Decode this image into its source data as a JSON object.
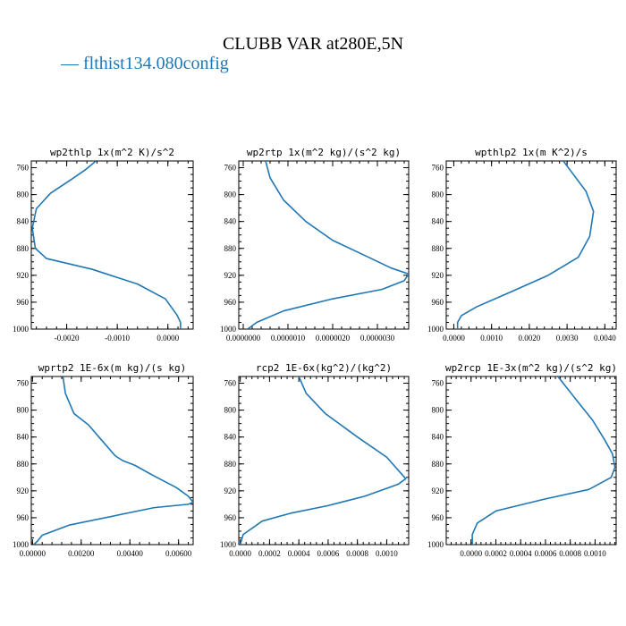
{
  "title": "CLUBB VAR at280E,5N",
  "legend": {
    "label": "— flthist134.080config",
    "color": "#1f77b4"
  },
  "chart_data": [
    {
      "type": "line",
      "title": "wp2thlp  1x(m^2 K)/s^2",
      "ylim": [
        1000,
        750
      ],
      "y_ticks": [
        760,
        800,
        840,
        880,
        920,
        960,
        1000
      ],
      "xlim": [
        -0.0027,
        0.0005
      ],
      "x_ticks": [
        -0.002,
        -0.001,
        0.0
      ],
      "x_tick_labels": [
        "-0.0020",
        "-0.0010",
        "0.0000"
      ],
      "series": [
        {
          "x": [
            -0.00142,
            -0.00163,
            -0.0019,
            -0.00232,
            -0.0026,
            -0.00268,
            -0.00262,
            -0.0024,
            -0.0015,
            -0.0006,
            -5e-05,
            0.00018,
            0.00025,
            0.00025
          ],
          "y": [
            750,
            763,
            777,
            798,
            821,
            850,
            880,
            895,
            911,
            933,
            955,
            979,
            990,
            1000
          ]
        }
      ]
    },
    {
      "type": "line",
      "title": "wp2rtp  1x(m^2 kg)/(s^2 kg)",
      "ylim": [
        1000,
        750
      ],
      "y_ticks": [
        760,
        800,
        840,
        880,
        920,
        960,
        1000
      ],
      "xlim": [
        -1e-07,
        3.7e-06
      ],
      "x_ticks": [
        0.0,
        1e-06,
        2e-06,
        3e-06
      ],
      "x_tick_labels": [
        "0.0000000",
        "0.0000010",
        "0.0000020",
        "0.0000030"
      ],
      "series": [
        {
          "x": [
            5e-07,
            6e-07,
            9e-07,
            1.4e-06,
            2e-06,
            2.8e-06,
            3.3e-06,
            3.7e-06,
            3.6e-06,
            3.1e-06,
            2e-06,
            9e-07,
            3e-07,
            1e-07
          ],
          "y": [
            750,
            775,
            808,
            840,
            868,
            893,
            909,
            918,
            928,
            941,
            955,
            973,
            990,
            1000
          ]
        }
      ]
    },
    {
      "type": "line",
      "title": "wpthlp2  1x(m K^2)/s",
      "ylim": [
        1000,
        750
      ],
      "y_ticks": [
        760,
        800,
        840,
        880,
        920,
        960,
        1000
      ],
      "xlim": [
        -0.0002,
        0.0043
      ],
      "x_ticks": [
        0.0,
        0.001,
        0.002,
        0.003,
        0.004
      ],
      "x_tick_labels": [
        "0.0000",
        "0.0010",
        "0.0020",
        "0.0030",
        "0.0040"
      ],
      "series": [
        {
          "x": [
            0.0029,
            0.0035,
            0.0037,
            0.0036,
            0.0033,
            0.0025,
            0.0015,
            0.0006,
            0.0002,
            0.0001,
            0.0001
          ],
          "y": [
            750,
            795,
            825,
            862,
            893,
            920,
            945,
            967,
            980,
            990,
            1000
          ]
        }
      ]
    },
    {
      "type": "line",
      "title": "wprtp2  1E-6x(m kg)/(s kg)",
      "ylim": [
        1000,
        750
      ],
      "y_ticks": [
        760,
        800,
        840,
        880,
        920,
        960,
        1000
      ],
      "xlim": [
        -5e-05,
        0.0066
      ],
      "x_ticks": [
        0.0,
        0.002,
        0.004,
        0.006
      ],
      "x_tick_labels": [
        "0.00000",
        "0.00200",
        "0.00400",
        "0.00600"
      ],
      "series": [
        {
          "x": [
            0.00125,
            0.00135,
            0.0017,
            0.0023,
            0.0028,
            0.0034,
            0.0037,
            0.0042,
            0.005,
            0.0059,
            0.0064,
            0.0066,
            0.0064,
            0.005,
            0.0015,
            0.0004,
            0.0002,
            5e-05
          ],
          "y": [
            750,
            775,
            805,
            822,
            843,
            868,
            875,
            882,
            898,
            915,
            928,
            937,
            940,
            945,
            971,
            986,
            995,
            1000
          ]
        }
      ]
    },
    {
      "type": "line",
      "title": "rcp2  1E-6x(kg^2)/(kg^2)",
      "ylim": [
        1000,
        750
      ],
      "y_ticks": [
        760,
        800,
        840,
        880,
        920,
        960,
        1000
      ],
      "xlim": [
        -1e-05,
        0.00115
      ],
      "x_ticks": [
        0.0,
        0.0002,
        0.0004,
        0.0006,
        0.0008,
        0.001
      ],
      "x_tick_labels": [
        "0.0000",
        "0.0002",
        "0.0004",
        "0.0006",
        "0.0008",
        "0.0010"
      ],
      "series": [
        {
          "x": [
            0.0004,
            0.00045,
            0.00058,
            0.0008,
            0.001,
            0.00113,
            0.00108,
            0.00085,
            0.0006,
            0.00035,
            0.00015,
            2e-05,
            0.0
          ],
          "y": [
            750,
            775,
            805,
            840,
            870,
            902,
            910,
            928,
            942,
            953,
            965,
            985,
            1000
          ]
        }
      ]
    },
    {
      "type": "line",
      "title": "wp2rcp  1E-3x(m^2 kg)/(s^2 kg)",
      "ylim": [
        1000,
        750
      ],
      "y_ticks": [
        760,
        800,
        840,
        880,
        920,
        960,
        1000
      ],
      "xlim": [
        -0.0002,
        0.00117
      ],
      "x_ticks": [
        0.0,
        0.0002,
        0.0004,
        0.0006,
        0.0008,
        0.001
      ],
      "x_tick_labels": [
        "0.0000",
        "0.0002",
        "0.0004",
        "0.0006",
        "0.0008",
        "0.0010"
      ],
      "series": [
        {
          "x": [
            0.0007,
            0.00085,
            0.00098,
            0.00108,
            0.00114,
            0.00116,
            0.00113,
            0.00095,
            0.0006,
            0.0002,
            5e-05,
            1e-05,
            1e-05
          ],
          "y": [
            750,
            785,
            815,
            845,
            865,
            885,
            900,
            918,
            932,
            950,
            968,
            985,
            1000
          ]
        }
      ]
    }
  ]
}
